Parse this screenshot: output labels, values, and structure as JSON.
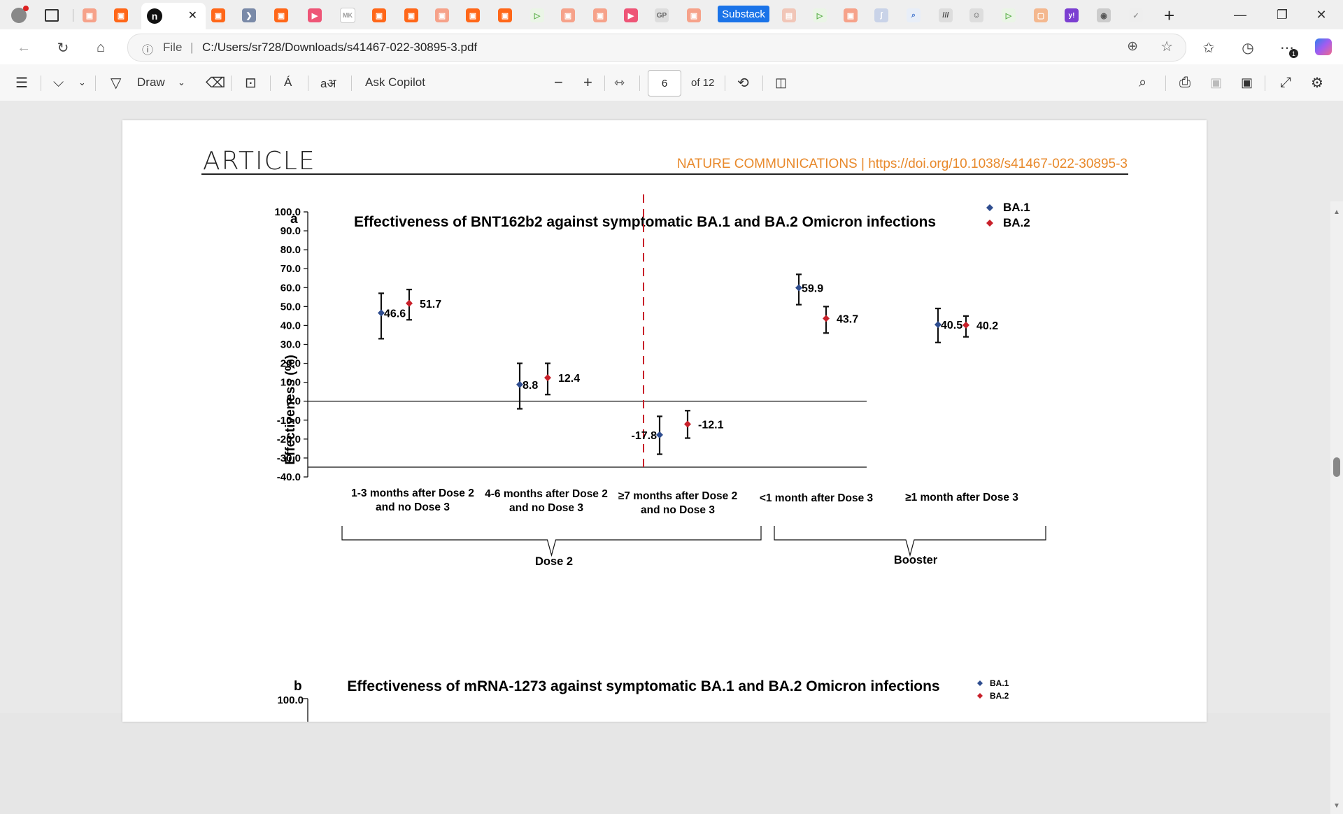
{
  "tabs": {
    "substack_label": "Substack",
    "new_tab": "+",
    "active_close": "✕"
  },
  "window": {
    "minimize": "—",
    "restore": "❐",
    "close": "✕"
  },
  "address": {
    "info": "ⓘ",
    "scheme_label": "File",
    "separator": "|",
    "url": "C:/Users/sr728/Downloads/s41467-022-30895-3.pdf",
    "notifications_badge": "1"
  },
  "pdf_toolbar": {
    "draw_label": "Draw",
    "ask_label": "Ask Copilot",
    "read_aloud": "Á",
    "translate": "aअ",
    "zoom_out": "−",
    "zoom_in": "+",
    "page_current": "6",
    "page_total": "of 12"
  },
  "page": {
    "header": "ARTICLE",
    "journal": "NATURE COMMUNICATIONS | https://doi.org/10.1038/s41467-022-30895-3"
  },
  "colors": {
    "ba1": "#2f4d8f",
    "ba2": "#c8202a",
    "accent": "#e8892b"
  },
  "chart_data": [
    {
      "type": "scatter",
      "panel_label": "a",
      "title": "Effectiveness of BNT162b2 against symptomatic BA.1 and BA.2 Omicron infections",
      "ylabel": "Effectiveness (%)",
      "ylim": [
        -40,
        100
      ],
      "yticks": [
        "100.0",
        "90.0",
        "80.0",
        "70.0",
        "60.0",
        "50.0",
        "40.0",
        "30.0",
        "20.0",
        "10.0",
        "0.0",
        "-10.0",
        "-20.0",
        "-30.0",
        "-40.0"
      ],
      "categories": [
        [
          "1-3 months after Dose 2",
          "and no Dose 3"
        ],
        [
          "4-6 months after Dose 2",
          "and no Dose 3"
        ],
        [
          "≥7 months after Dose 2",
          "and no Dose 3"
        ],
        [
          "<1 month after Dose 3"
        ],
        [
          "≥1 month after Dose 3"
        ]
      ],
      "groups": [
        {
          "label": "Dose 2",
          "categories": [
            0,
            1,
            2
          ]
        },
        {
          "label": "Booster",
          "categories": [
            3,
            4
          ]
        }
      ],
      "series": [
        {
          "name": "BA.1",
          "values": [
            46.6,
            8.8,
            -17.8,
            59.9,
            40.5
          ],
          "labels": [
            "46.6",
            "8.8",
            "-17.8",
            "59.9",
            "40.5"
          ],
          "ci_low": [
            33.0,
            -4.0,
            -28.0,
            51.0,
            31.0
          ],
          "ci_high": [
            57.0,
            20.0,
            -8.0,
            67.0,
            49.0
          ]
        },
        {
          "name": "BA.2",
          "values": [
            51.7,
            12.4,
            -12.1,
            43.7,
            40.2
          ],
          "labels": [
            "51.7",
            "12.4",
            "-12.1",
            "43.7",
            "40.2"
          ],
          "ci_low": [
            43.0,
            3.5,
            -19.5,
            36.0,
            34.0
          ],
          "ci_high": [
            59.0,
            20.0,
            -5.0,
            50.0,
            45.0
          ]
        }
      ],
      "legend": "top-right",
      "divider": "dashed red line between Dose 2 and Booster groups"
    },
    {
      "type": "scatter",
      "panel_label": "b",
      "title": "Effectiveness of mRNA-1273 against symptomatic BA.1 and BA.2 Omicron infections",
      "yticks": [
        "100.0"
      ],
      "series": [
        {
          "name": "BA.1"
        },
        {
          "name": "BA.2"
        }
      ],
      "legend": "top-right"
    }
  ]
}
